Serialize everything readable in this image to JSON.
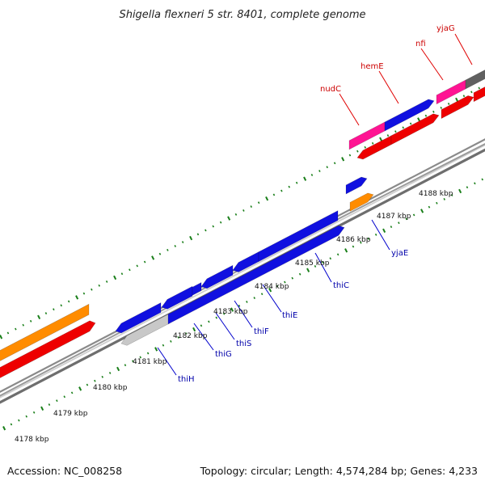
{
  "title": "Shigella flexneri 5 str. 8401, complete genome",
  "footer": {
    "accession": "Accession: NC_008258",
    "summary": "Topology: circular; Length: 4,574,284 bp; Genes: 4,233"
  },
  "colors": {
    "forward_blue": "#1010e0",
    "reverse_blue": "#0c0cd0",
    "red": "#ee0000",
    "orange": "#ff8c00",
    "magenta": "#ff1493",
    "gray": "#606060",
    "light_gray": "#c8c8c8",
    "tick_green": "#1a7f1a",
    "label_red": "#cc0000",
    "label_blue": "#0000aa"
  },
  "scale_labels": [
    "4178 kbp",
    "4179 kbp",
    "4180 kbp",
    "4181 kbp",
    "4182 kbp",
    "4183 kbp",
    "4184 kbp",
    "4185 kbp",
    "4186 kbp",
    "4187 kbp",
    "4188 kbp"
  ],
  "gene_labels_top": [
    "nudC",
    "hemE",
    "nfi",
    "yjaG"
  ],
  "gene_labels_bottom": [
    "thiH",
    "thiG",
    "thiS",
    "thiF",
    "thiE",
    "thiC",
    "yjaE"
  ]
}
